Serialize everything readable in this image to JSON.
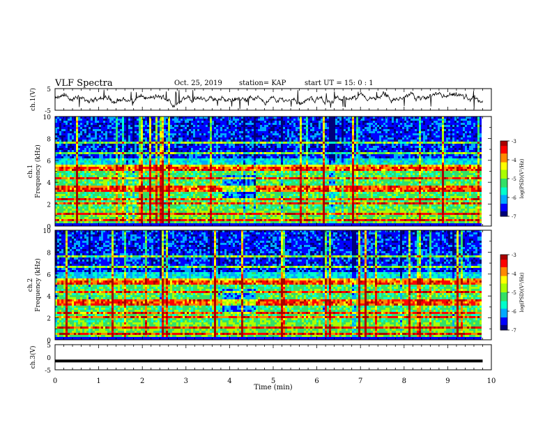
{
  "header": {
    "title": "VLF Spectra",
    "date": "Oct. 25, 2019",
    "station": "station= KAP",
    "start": "start  UT =   15: 0  : 1"
  },
  "colors": {
    "spectrogram_colormap": [
      "#00007a",
      "#0000ff",
      "#00aaff",
      "#00ffcc",
      "#33e066",
      "#aaff00",
      "#ffff00",
      "#ff8800",
      "#ff0000",
      "#aa0000"
    ],
    "trace": "#000000"
  },
  "chart_data": [
    {
      "type": "line",
      "panel": "ch1-waveform",
      "ylabel": "ch.1(V)",
      "ylim": [
        -5,
        5
      ],
      "yticks": [
        "5",
        "-5"
      ],
      "xlim": [
        0,
        10
      ],
      "series": [
        {
          "x_range": [
            0,
            9.8
          ],
          "approx_level": 0,
          "approx_amplitude": 3.5
        }
      ]
    },
    {
      "type": "heatmap",
      "panel": "ch1-spectrogram",
      "ylabel": "ch.1\nFrequency (kHz)",
      "ylim": [
        0,
        10
      ],
      "yticks": [
        "0",
        "2",
        "4",
        "6",
        "8",
        "10"
      ],
      "xlim": [
        0,
        10
      ],
      "data_x_range": [
        0,
        9.8
      ],
      "colorbar": {
        "label": "log(PSD)(V²/Hz)",
        "range": [
          -7,
          -3
        ],
        "ticks": [
          "-3",
          "-4",
          "-5",
          "-6",
          "-7"
        ]
      }
    },
    {
      "type": "heatmap",
      "panel": "ch2-spectrogram",
      "ylabel": "ch.2\nFrequency (kHz)",
      "ylim": [
        0,
        10
      ],
      "yticks": [
        "0",
        "2",
        "4",
        "6",
        "8",
        "10"
      ],
      "xlim": [
        0,
        10
      ],
      "data_x_range": [
        0,
        9.8
      ],
      "colorbar": {
        "label": "log(PSD)(V²/Hz)",
        "range": [
          -7,
          -3
        ],
        "ticks": [
          "-3",
          "-4",
          "-5",
          "-6",
          "-7"
        ]
      }
    },
    {
      "type": "line",
      "panel": "ch3-waveform",
      "ylabel": "ch.3(V)",
      "ylim": [
        -5,
        5
      ],
      "yticks": [
        "5",
        "0",
        "-5"
      ],
      "xlim": [
        0,
        10
      ],
      "xlabel": "Time  (min)",
      "xticks": [
        "0",
        "1",
        "2",
        "3",
        "4",
        "5",
        "6",
        "7",
        "8",
        "9",
        "10"
      ],
      "series": [
        {
          "x_range": [
            0,
            9.8
          ],
          "y": -1.5
        }
      ]
    }
  ]
}
